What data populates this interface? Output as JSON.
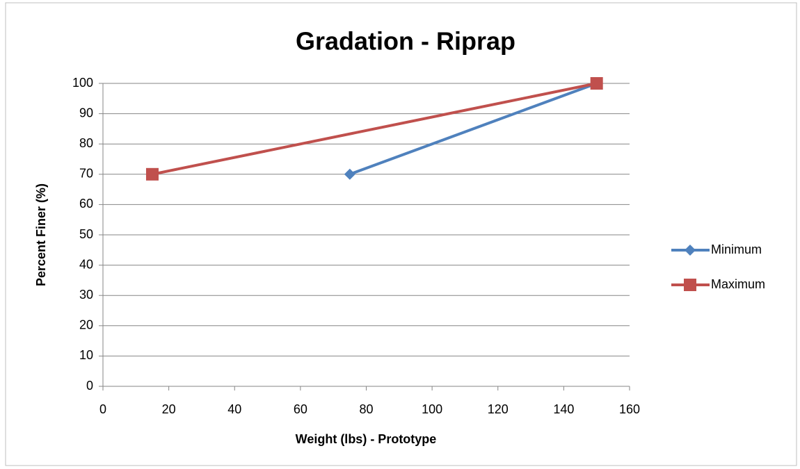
{
  "chart_data": {
    "type": "line",
    "title": "Gradation - Riprap",
    "x_label": "Weight (lbs) - Prototype",
    "y_label": "Percent Finer (%)",
    "series": [
      {
        "name": "Minimum",
        "color": "#4f81bd",
        "marker": "diamond",
        "x": [
          75,
          150
        ],
        "values": [
          70,
          100
        ]
      },
      {
        "name": "Maximum",
        "color": "#c0504d",
        "marker": "square",
        "x": [
          15,
          150
        ],
        "values": [
          70,
          100
        ]
      }
    ],
    "xlim": [
      0,
      160
    ],
    "xticks": [
      0,
      20,
      40,
      60,
      80,
      100,
      120,
      140,
      160
    ],
    "ylim": [
      0,
      100
    ],
    "yticks": [
      0,
      10,
      20,
      30,
      40,
      50,
      60,
      70,
      80,
      90,
      100
    ],
    "grid": true,
    "legend": "right"
  }
}
